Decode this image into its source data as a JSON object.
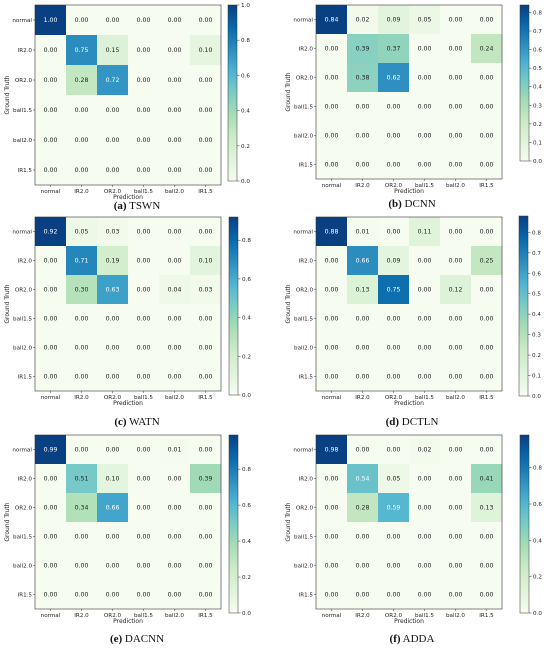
{
  "chart_data": [
    {
      "type": "heatmap",
      "caption_letter": "(a)",
      "caption_name": "TSWN",
      "xlabel": "Prediction",
      "ylabel": "Ground Truth",
      "x_categories": [
        "normal",
        "IR2.0",
        "OR2.0",
        "ball1.5",
        "ball2.0",
        "IR1.5"
      ],
      "y_categories": [
        "normal",
        "IR2.0",
        "OR2.0",
        "ball1.5",
        "ball2.0",
        "IR1.5"
      ],
      "values": [
        [
          1.0,
          0.0,
          0.0,
          0.0,
          0.0,
          0.0
        ],
        [
          0.0,
          0.75,
          0.15,
          0.0,
          0.0,
          0.1
        ],
        [
          0.0,
          0.28,
          0.72,
          0.0,
          0.0,
          0.0
        ],
        [
          0.0,
          0.0,
          0.0,
          0.0,
          0.0,
          0.0
        ],
        [
          0.0,
          0.0,
          0.0,
          0.0,
          0.0,
          0.0
        ],
        [
          0.0,
          0.0,
          0.0,
          0.0,
          0.0,
          0.0
        ]
      ],
      "colorbar_range": [
        0,
        1.0
      ],
      "colorbar_ticks": [
        "0.0",
        "0.2",
        "0.4",
        "0.6",
        "0.8",
        "1.0"
      ]
    },
    {
      "type": "heatmap",
      "caption_letter": "(b)",
      "caption_name": "DCNN",
      "xlabel": "Prediction",
      "ylabel": "Ground Truth",
      "x_categories": [
        "normal",
        "IR2.0",
        "OR2.0",
        "ball1.5",
        "ball2.0",
        "IR1.5"
      ],
      "y_categories": [
        "normal",
        "IR2.0",
        "OR2.0",
        "ball1.5",
        "ball2.0",
        "IR1.5"
      ],
      "values": [
        [
          0.84,
          0.02,
          0.09,
          0.05,
          0.0,
          0.0
        ],
        [
          0.0,
          0.39,
          0.37,
          0.0,
          0.0,
          0.24
        ],
        [
          0.0,
          0.38,
          0.62,
          0.0,
          0.0,
          0.0
        ],
        [
          0.0,
          0.0,
          0.0,
          0.0,
          0.0,
          0.0
        ],
        [
          0.0,
          0.0,
          0.0,
          0.0,
          0.0,
          0.0
        ],
        [
          0.0,
          0.0,
          0.0,
          0.0,
          0.0,
          0.0
        ]
      ],
      "colorbar_range": [
        0,
        0.84
      ],
      "colorbar_ticks": [
        "0.0",
        "0.1",
        "0.2",
        "0.3",
        "0.4",
        "0.5",
        "0.6",
        "0.7",
        "0.8"
      ]
    },
    {
      "type": "heatmap",
      "caption_letter": "(c)",
      "caption_name": "WATN",
      "xlabel": "Prediction",
      "ylabel": "Ground Truth",
      "x_categories": [
        "normal",
        "IR2.0",
        "OR2.0",
        "ball1.5",
        "ball2.0",
        "IR1.5"
      ],
      "y_categories": [
        "normal",
        "IR2.0",
        "OR2.0",
        "ball1.5",
        "ball2.0",
        "IR1.5"
      ],
      "values": [
        [
          0.92,
          0.05,
          0.03,
          0.0,
          0.0,
          0.0
        ],
        [
          0.0,
          0.71,
          0.19,
          0.0,
          0.0,
          0.1
        ],
        [
          0.0,
          0.3,
          0.63,
          0.0,
          0.04,
          0.03
        ],
        [
          0.0,
          0.0,
          0.0,
          0.0,
          0.0,
          0.0
        ],
        [
          0.0,
          0.0,
          0.0,
          0.0,
          0.0,
          0.0
        ],
        [
          0.0,
          0.0,
          0.0,
          0.0,
          0.0,
          0.0
        ]
      ],
      "colorbar_range": [
        0,
        0.92
      ],
      "colorbar_ticks": [
        "0.0",
        "0.2",
        "0.4",
        "0.6",
        "0.8"
      ]
    },
    {
      "type": "heatmap",
      "caption_letter": "(d)",
      "caption_name": "DCTLN",
      "xlabel": "Prediction",
      "ylabel": "Ground Truth",
      "x_categories": [
        "normal",
        "IR2.0",
        "OR2.0",
        "ball1.5",
        "ball2.0",
        "IR1.5"
      ],
      "y_categories": [
        "normal",
        "IR2.0",
        "OR2.0",
        "ball1.5",
        "ball2.0",
        "IR1.5"
      ],
      "values": [
        [
          0.88,
          0.01,
          0.0,
          0.11,
          0.0,
          0.0
        ],
        [
          0.0,
          0.66,
          0.09,
          0.0,
          0.0,
          0.25
        ],
        [
          0.0,
          0.13,
          0.75,
          0.0,
          0.12,
          0.0
        ],
        [
          0.0,
          0.0,
          0.0,
          0.0,
          0.0,
          0.0
        ],
        [
          0.0,
          0.0,
          0.0,
          0.0,
          0.0,
          0.0
        ],
        [
          0.0,
          0.0,
          0.0,
          0.0,
          0.0,
          0.0
        ]
      ],
      "colorbar_range": [
        0,
        0.88
      ],
      "colorbar_ticks": [
        "0.0",
        "0.1",
        "0.2",
        "0.3",
        "0.4",
        "0.5",
        "0.6",
        "0.7",
        "0.8"
      ]
    },
    {
      "type": "heatmap",
      "caption_letter": "(e)",
      "caption_name": "DACNN",
      "xlabel": "Prediction",
      "ylabel": "Ground Truth",
      "x_categories": [
        "normal",
        "IR2.0",
        "OR2.0",
        "ball1.5",
        "ball2.0",
        "IR1.5"
      ],
      "y_categories": [
        "normal",
        "IR2.0",
        "OR2.0",
        "ball1.5",
        "ball2.0",
        "IR1.5"
      ],
      "values": [
        [
          0.99,
          0.0,
          0.0,
          0.0,
          0.01,
          0.0
        ],
        [
          0.0,
          0.51,
          0.1,
          0.0,
          0.0,
          0.39
        ],
        [
          0.0,
          0.34,
          0.66,
          0.0,
          0.0,
          0.0
        ],
        [
          0.0,
          0.0,
          0.0,
          0.0,
          0.0,
          0.0
        ],
        [
          0.0,
          0.0,
          0.0,
          0.0,
          0.0,
          0.0
        ],
        [
          0.0,
          0.0,
          0.0,
          0.0,
          0.0,
          0.0
        ]
      ],
      "colorbar_range": [
        0,
        0.99
      ],
      "colorbar_ticks": [
        "0.0",
        "0.2",
        "0.4",
        "0.6",
        "0.8"
      ]
    },
    {
      "type": "heatmap",
      "caption_letter": "(f)",
      "caption_name": "ADDA",
      "xlabel": "Prediction",
      "ylabel": "Ground Truth",
      "x_categories": [
        "normal",
        "IR2.0",
        "OR2.0",
        "ball1.5",
        "ball2.0",
        "IR1.5"
      ],
      "y_categories": [
        "normal",
        "IR2.0",
        "OR2.0",
        "ball1.5",
        "ball2.0",
        "IR1.5"
      ],
      "values": [
        [
          0.98,
          0.0,
          0.0,
          0.02,
          0.0,
          0.0
        ],
        [
          0.0,
          0.54,
          0.05,
          0.0,
          0.0,
          0.41
        ],
        [
          0.0,
          0.28,
          0.59,
          0.0,
          0.0,
          0.13
        ],
        [
          0.0,
          0.0,
          0.0,
          0.0,
          0.0,
          0.0
        ],
        [
          0.0,
          0.0,
          0.0,
          0.0,
          0.0,
          0.0
        ],
        [
          0.0,
          0.0,
          0.0,
          0.0,
          0.0,
          0.0
        ]
      ],
      "colorbar_range": [
        0,
        0.98
      ],
      "colorbar_ticks": [
        "0.0",
        "0.2",
        "0.4",
        "0.6",
        "0.8"
      ]
    }
  ]
}
